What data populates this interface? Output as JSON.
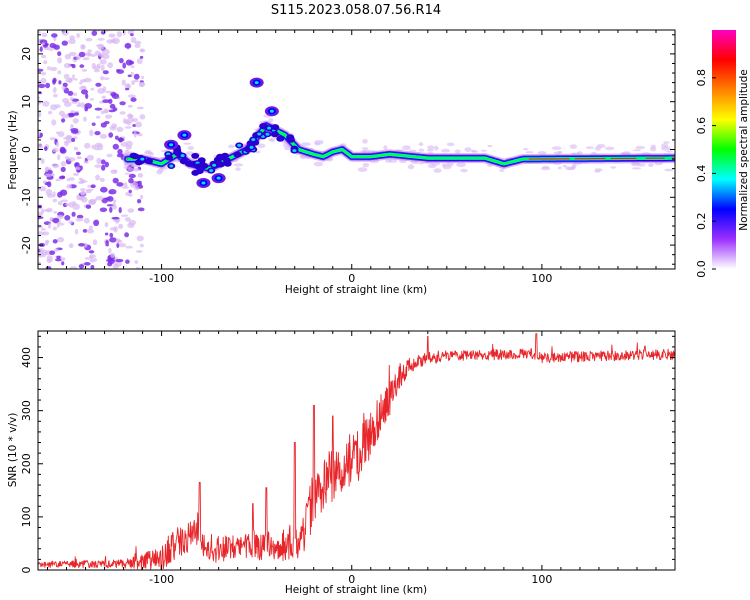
{
  "figure": {
    "title": "S115.2023.058.07.56.R14"
  },
  "colors": {
    "line_red": "#e8262a",
    "dot_purple": "#7d2fe8",
    "dot_lilac": "#d9b8f2"
  },
  "chart_data": [
    {
      "type": "heatmap",
      "title": "S115.2023.058.07.56.R14",
      "xlabel": "Height of straight line (km)",
      "ylabel": "Frequency (Hz)",
      "xlim": [
        -165,
        170
      ],
      "ylim": [
        -25,
        25
      ],
      "x_ticks": [
        -100,
        0,
        100
      ],
      "y_ticks": [
        -20,
        -10,
        0,
        10,
        20
      ],
      "colorbar": {
        "label": "Normalized spectral amplitude",
        "range": [
          0,
          1
        ],
        "ticks": [
          "0.0",
          "0.2",
          "0.4",
          "0.6",
          "0.8"
        ],
        "ticks_values": [
          0,
          0.2,
          0.4,
          0.6,
          0.8
        ],
        "colormap": [
          "#ffffff",
          "#9b30ff",
          "#0000ff",
          "#00ffff",
          "#00ff00",
          "#ffff00",
          "#ff8000",
          "#ff0000",
          "#ff00c0"
        ]
      },
      "ridge": [
        [
          -110,
          -2
        ],
        [
          -100,
          -3
        ],
        [
          -92,
          -1
        ],
        [
          -85,
          -3
        ],
        [
          -75,
          -4
        ],
        [
          -65,
          -2
        ],
        [
          -55,
          0
        ],
        [
          -45,
          5
        ],
        [
          -40,
          4
        ],
        [
          -35,
          3
        ],
        [
          -28,
          0
        ],
        [
          -20,
          -1
        ],
        [
          -15,
          -1.5
        ],
        [
          -10,
          -0.5
        ],
        [
          -5,
          0
        ],
        [
          0,
          -1.5
        ],
        [
          10,
          -1.5
        ],
        [
          20,
          -1
        ],
        [
          40,
          -1.8
        ],
        [
          70,
          -1.8
        ],
        [
          80,
          -3
        ],
        [
          90,
          -2
        ],
        [
          170,
          -1.8
        ]
      ],
      "islands": [
        [
          -50,
          14
        ],
        [
          -42,
          8
        ],
        [
          -78,
          -7
        ],
        [
          -70,
          -6
        ],
        [
          -88,
          3
        ],
        [
          -95,
          1
        ]
      ]
    },
    {
      "type": "line",
      "xlabel": "Height of straight line (km)",
      "ylabel": "SNR (10 * v/v)",
      "xlim": [
        -165,
        170
      ],
      "ylim": [
        0,
        450
      ],
      "x_ticks": [
        -100,
        0,
        100
      ],
      "y_ticks": [
        0,
        100,
        200,
        300,
        400
      ],
      "series": [
        {
          "envelope_x": [
            -165,
            -120,
            -100,
            -95,
            -88,
            -82,
            -75,
            -60,
            -50,
            -40,
            -30,
            -25,
            -20,
            -10,
            -5,
            5,
            10,
            20,
            25,
            30,
            40,
            60,
            80,
            95,
            100,
            130,
            150,
            170
          ],
          "envelope_y": [
            10,
            12,
            22,
            45,
            55,
            70,
            38,
            40,
            48,
            45,
            50,
            70,
            140,
            180,
            200,
            220,
            260,
            320,
            360,
            385,
            400,
            405,
            405,
            407,
            400,
            403,
            405,
            406
          ],
          "noise": [
            6,
            8,
            25,
            30,
            30,
            30,
            25,
            25,
            30,
            25,
            40,
            40,
            55,
            50,
            50,
            50,
            45,
            35,
            25,
            15,
            12,
            10,
            10,
            10,
            10,
            10,
            10,
            10
          ],
          "spikes": [
            [
              -80,
              165
            ],
            [
              -52,
              125
            ],
            [
              -45,
              155
            ],
            [
              -30,
              240
            ],
            [
              -20,
              310
            ],
            [
              -10,
              290
            ],
            [
              40,
              440
            ],
            [
              97,
              310
            ],
            [
              97,
              445
            ]
          ]
        }
      ]
    }
  ]
}
